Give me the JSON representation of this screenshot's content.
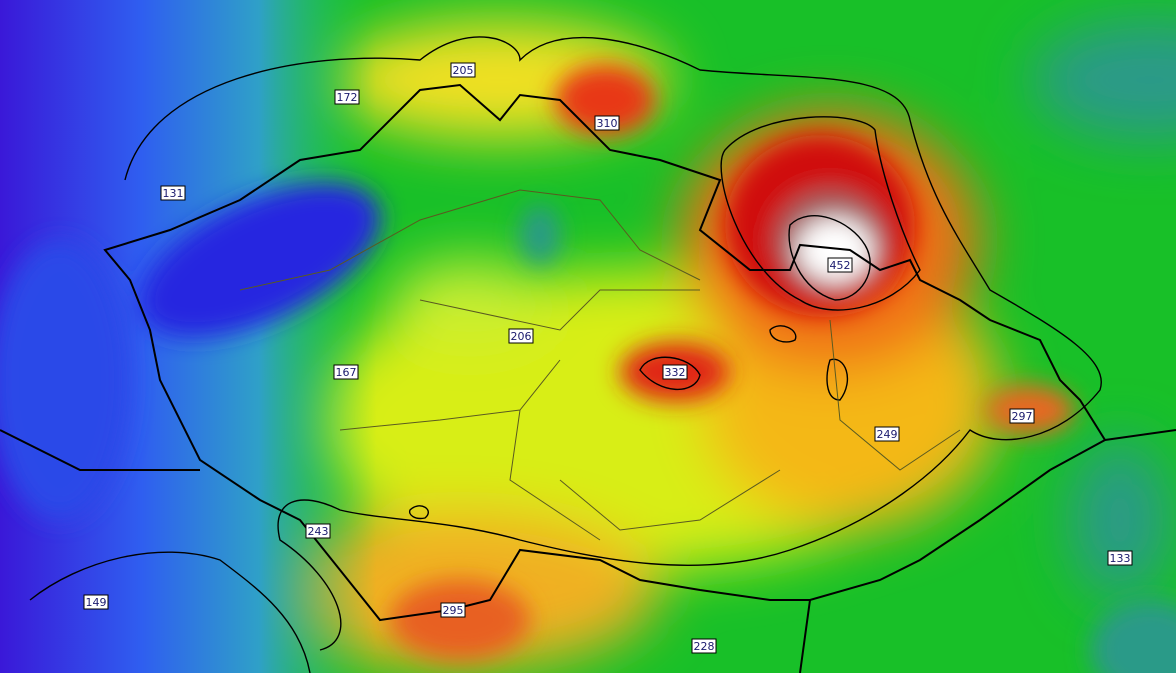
{
  "map": {
    "labels": [
      {
        "value": 205
      },
      {
        "value": 172
      },
      {
        "value": 310
      },
      {
        "value": 131
      },
      {
        "value": 452
      },
      {
        "value": 206
      },
      {
        "value": 332
      },
      {
        "value": 167
      },
      {
        "value": 297
      },
      {
        "value": 249
      },
      {
        "value": 243
      },
      {
        "value": 133
      },
      {
        "value": 149
      },
      {
        "value": 295
      },
      {
        "value": 228
      }
    ]
  }
}
